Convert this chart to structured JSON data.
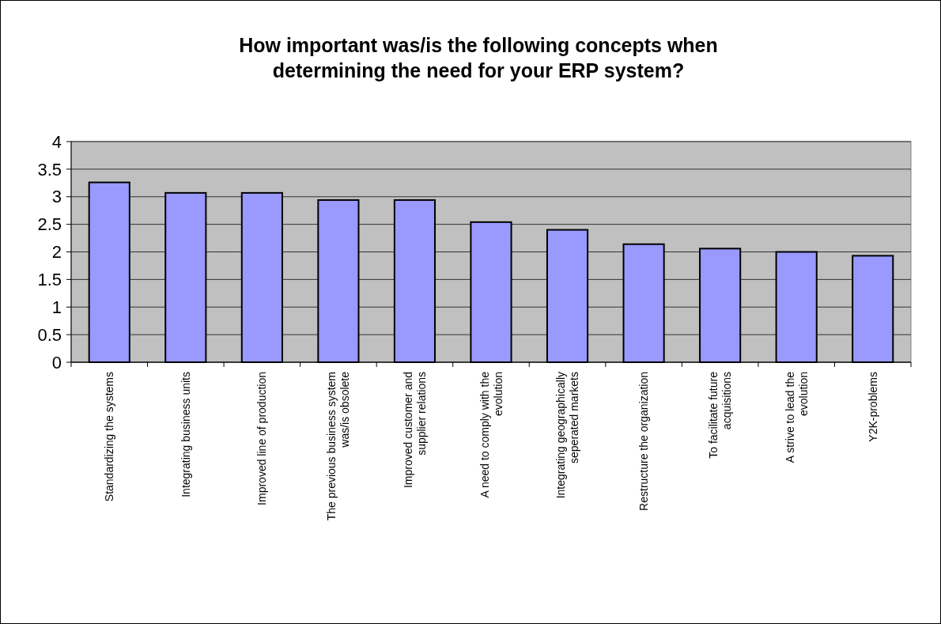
{
  "chart_data": {
    "type": "bar",
    "title": "How important was/is the following concepts when determining the need for your ERP system?",
    "categories": [
      "Standardizing the systems",
      "Integrating business units",
      "Improved line of production",
      "The previous business system was/is obsolete",
      "Improved customer and supplier relations",
      "A need to comply with the evolution",
      "Integrating geographically seperated markets",
      "Restructure the organization",
      "To facilitate future acquisitions",
      "A strive to lead the evolution",
      "Y2K-problems"
    ],
    "values": [
      3.26,
      3.07,
      3.07,
      2.94,
      2.94,
      2.54,
      2.4,
      2.14,
      2.06,
      2.0,
      1.93
    ],
    "color": "#9999ff",
    "ylim": [
      0,
      4
    ],
    "yticks": [
      0,
      0.5,
      1,
      1.5,
      2,
      2.5,
      3,
      3.5,
      4
    ],
    "grid": "y"
  }
}
